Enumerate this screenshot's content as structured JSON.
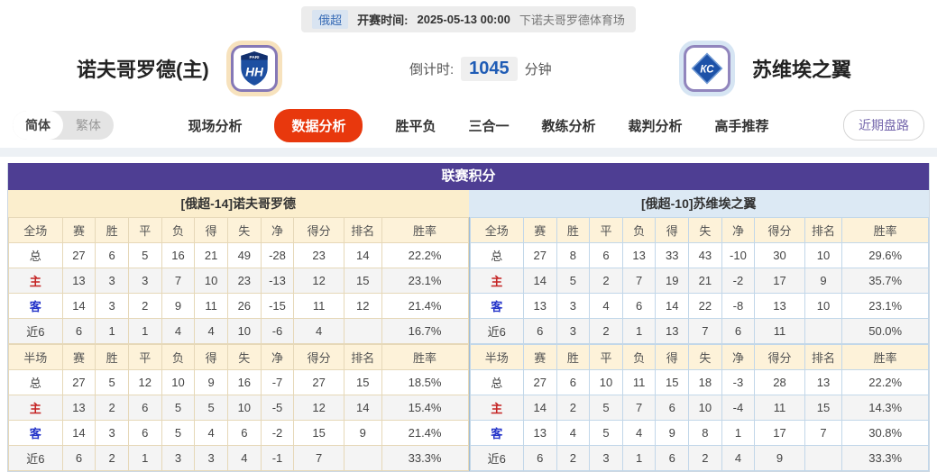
{
  "colors": {
    "accent_purple": "#4e3e93",
    "active_tab_red": "#e8380d",
    "home_panel_cream": "#fbeecd",
    "away_panel_blue": "#dce9f4",
    "header_row_cream": "#fdf2d9",
    "home_border_tan": "#e6d8b8",
    "away_border_blue": "#c2d7e9",
    "countdown_blue": "#1f5cb5",
    "home_row_label_red": "#c42424",
    "away_row_label_blue": "#2232c8"
  },
  "top_bar": {
    "league_badge": "俄超",
    "kickoff_label": "开赛时间:",
    "kickoff_time": "2025-05-13 00:00",
    "venue": "下诺夫哥罗德体育场"
  },
  "match_header": {
    "home_team": "诺夫哥罗德(主)",
    "away_team": "苏维埃之翼",
    "countdown_label": "倒计时:",
    "countdown_value": "1045",
    "countdown_unit": "分钟",
    "home_logo_top": "PARI",
    "home_logo_text": "НН",
    "away_logo_text": "КС"
  },
  "nav": {
    "lang_simplified": "简体",
    "lang_traditional": "繁体",
    "tabs": [
      {
        "label": "现场分析",
        "active": false
      },
      {
        "label": "数据分析",
        "active": true
      },
      {
        "label": "胜平负",
        "active": false
      },
      {
        "label": "三合一",
        "active": false
      },
      {
        "label": "教练分析",
        "active": false
      },
      {
        "label": "裁判分析",
        "active": false
      },
      {
        "label": "高手推荐",
        "active": false
      }
    ],
    "recent_trend_button": "近期盘路"
  },
  "standings": {
    "title": "联赛积分",
    "full_headers": [
      "全场",
      "赛",
      "胜",
      "平",
      "负",
      "得",
      "失",
      "净",
      "得分",
      "排名",
      "胜率"
    ],
    "half_headers": [
      "半场",
      "赛",
      "胜",
      "平",
      "负",
      "得",
      "失",
      "净",
      "得分",
      "排名",
      "胜率"
    ],
    "home": {
      "team_title": "[俄超-14]诺夫哥罗德",
      "full_rows": [
        {
          "label": "总",
          "style": "plain",
          "cells": [
            "27",
            "6",
            "5",
            "16",
            "21",
            "49",
            "-28",
            "23",
            "14",
            "22.2%"
          ]
        },
        {
          "label": "主",
          "style": "red",
          "cells": [
            "13",
            "3",
            "3",
            "7",
            "10",
            "23",
            "-13",
            "12",
            "15",
            "23.1%"
          ]
        },
        {
          "label": "客",
          "style": "blue",
          "cells": [
            "14",
            "3",
            "2",
            "9",
            "11",
            "26",
            "-15",
            "11",
            "12",
            "21.4%"
          ]
        },
        {
          "label": "近6",
          "style": "plain",
          "cells": [
            "6",
            "1",
            "1",
            "4",
            "4",
            "10",
            "-6",
            "4",
            "",
            "16.7%"
          ]
        }
      ],
      "half_rows": [
        {
          "label": "总",
          "style": "plain",
          "cells": [
            "27",
            "5",
            "12",
            "10",
            "9",
            "16",
            "-7",
            "27",
            "15",
            "18.5%"
          ]
        },
        {
          "label": "主",
          "style": "red",
          "cells": [
            "13",
            "2",
            "6",
            "5",
            "5",
            "10",
            "-5",
            "12",
            "14",
            "15.4%"
          ]
        },
        {
          "label": "客",
          "style": "blue",
          "cells": [
            "14",
            "3",
            "6",
            "5",
            "4",
            "6",
            "-2",
            "15",
            "9",
            "21.4%"
          ]
        },
        {
          "label": "近6",
          "style": "plain",
          "cells": [
            "6",
            "2",
            "1",
            "3",
            "3",
            "4",
            "-1",
            "7",
            "",
            "33.3%"
          ]
        }
      ]
    },
    "away": {
      "team_title": "[俄超-10]苏维埃之翼",
      "full_rows": [
        {
          "label": "总",
          "style": "plain",
          "cells": [
            "27",
            "8",
            "6",
            "13",
            "33",
            "43",
            "-10",
            "30",
            "10",
            "29.6%"
          ]
        },
        {
          "label": "主",
          "style": "red",
          "cells": [
            "14",
            "5",
            "2",
            "7",
            "19",
            "21",
            "-2",
            "17",
            "9",
            "35.7%"
          ]
        },
        {
          "label": "客",
          "style": "blue",
          "cells": [
            "13",
            "3",
            "4",
            "6",
            "14",
            "22",
            "-8",
            "13",
            "10",
            "23.1%"
          ]
        },
        {
          "label": "近6",
          "style": "plain",
          "cells": [
            "6",
            "3",
            "2",
            "1",
            "13",
            "7",
            "6",
            "11",
            "",
            "50.0%"
          ]
        }
      ],
      "half_rows": [
        {
          "label": "总",
          "style": "plain",
          "cells": [
            "27",
            "6",
            "10",
            "11",
            "15",
            "18",
            "-3",
            "28",
            "13",
            "22.2%"
          ]
        },
        {
          "label": "主",
          "style": "red",
          "cells": [
            "14",
            "2",
            "5",
            "7",
            "6",
            "10",
            "-4",
            "11",
            "15",
            "14.3%"
          ]
        },
        {
          "label": "客",
          "style": "blue",
          "cells": [
            "13",
            "4",
            "5",
            "4",
            "9",
            "8",
            "1",
            "17",
            "7",
            "30.8%"
          ]
        },
        {
          "label": "近6",
          "style": "plain",
          "cells": [
            "6",
            "2",
            "3",
            "1",
            "6",
            "2",
            "4",
            "9",
            "",
            "33.3%"
          ]
        }
      ]
    }
  }
}
